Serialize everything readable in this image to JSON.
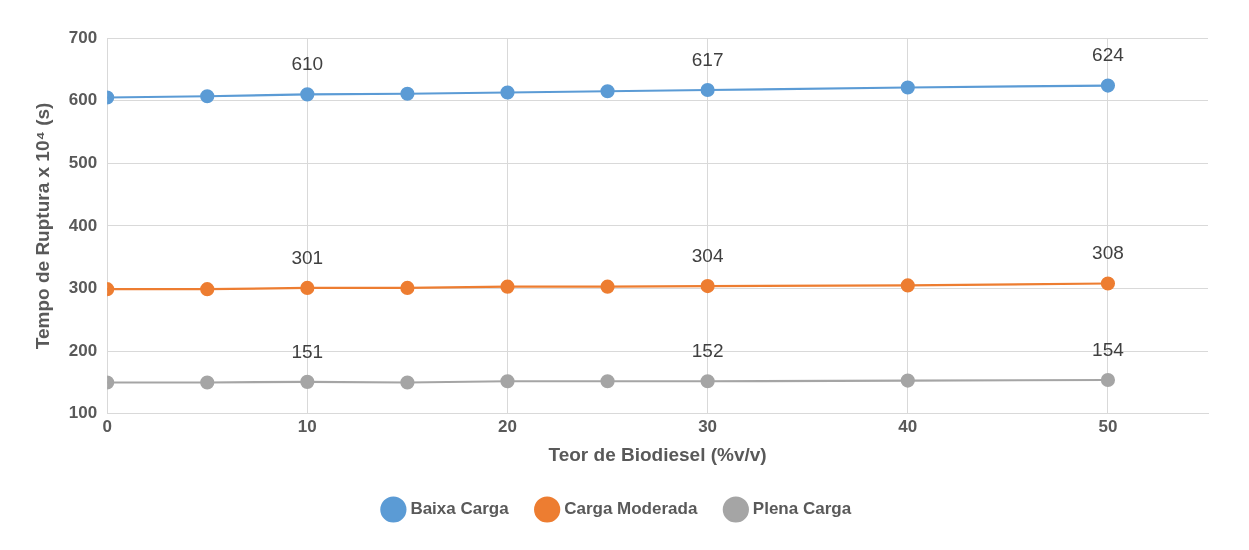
{
  "chart_data": {
    "type": "line",
    "xlabel": "Teor de Biodiesel (%v/v)",
    "ylabel": "Tempo de Ruptura x 10⁴ (s)",
    "x": [
      0,
      5,
      10,
      15,
      20,
      25,
      30,
      40,
      50
    ],
    "xlim": [
      0,
      55
    ],
    "xticks": [
      0,
      10,
      20,
      30,
      40,
      50
    ],
    "ylim": [
      100,
      700
    ],
    "yticks": [
      100,
      200,
      300,
      400,
      500,
      600,
      700
    ],
    "grid": true,
    "legend": "bottom",
    "marker": "circle",
    "line_style": "solid",
    "series": [
      {
        "name": "Baixa Carga",
        "color": "#5b9bd5",
        "values": [
          605,
          607,
          610,
          611,
          613,
          615,
          617,
          621,
          624
        ],
        "value_labels": [
          null,
          null,
          "610",
          null,
          null,
          null,
          "617",
          null,
          "624"
        ]
      },
      {
        "name": "Carga Moderada",
        "color": "#ed7d31",
        "values": [
          299,
          299,
          301,
          301,
          303,
          303,
          304,
          305,
          308
        ],
        "value_labels": [
          null,
          null,
          "301",
          null,
          null,
          null,
          "304",
          null,
          "308"
        ]
      },
      {
        "name": "Plena Carga",
        "color": "#a5a5a5",
        "values": [
          150,
          150,
          151,
          150,
          152,
          152,
          152,
          153,
          154
        ],
        "value_labels": [
          null,
          null,
          "151",
          null,
          null,
          null,
          "152",
          null,
          "154"
        ]
      }
    ]
  }
}
